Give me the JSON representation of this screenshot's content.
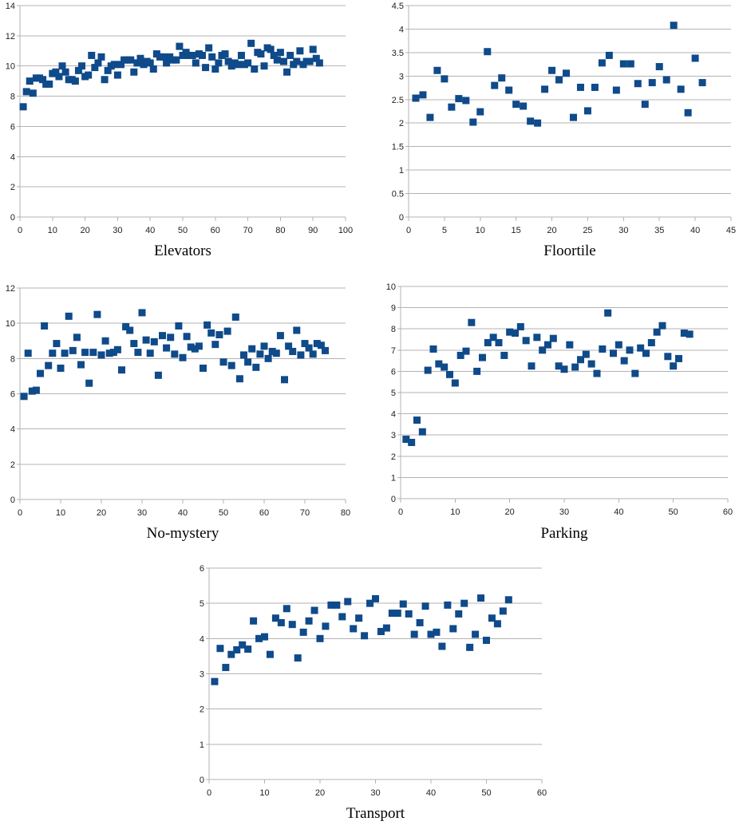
{
  "colors": {
    "marker": "#0f4a8a",
    "grid": "#b3b3b3",
    "axis": "#999999"
  },
  "chart_data": [
    {
      "type": "scatter",
      "title": "Elevators",
      "xlim": [
        0,
        100
      ],
      "ylim": [
        0,
        14
      ],
      "xticks": [
        0,
        10,
        20,
        30,
        40,
        50,
        60,
        70,
        80,
        90,
        100
      ],
      "yticks": [
        0,
        2,
        4,
        6,
        8,
        10,
        12,
        14
      ],
      "grid": true,
      "points": [
        [
          1,
          7.3
        ],
        [
          2,
          8.3
        ],
        [
          3,
          9.0
        ],
        [
          4,
          8.2
        ],
        [
          5,
          9.2
        ],
        [
          6,
          9.2
        ],
        [
          7,
          9.1
        ],
        [
          8,
          8.8
        ],
        [
          9,
          8.8
        ],
        [
          10,
          9.5
        ],
        [
          11,
          9.6
        ],
        [
          12,
          9.3
        ],
        [
          13,
          10.0
        ],
        [
          14,
          9.6
        ],
        [
          15,
          9.1
        ],
        [
          16,
          9.1
        ],
        [
          17,
          9.0
        ],
        [
          18,
          9.7
        ],
        [
          19,
          10.0
        ],
        [
          20,
          9.3
        ],
        [
          21,
          9.4
        ],
        [
          22,
          10.7
        ],
        [
          23,
          9.9
        ],
        [
          24,
          10.2
        ],
        [
          25,
          10.6
        ],
        [
          26,
          9.1
        ],
        [
          27,
          9.7
        ],
        [
          28,
          10.0
        ],
        [
          29,
          10.1
        ],
        [
          30,
          9.4
        ],
        [
          31,
          10.1
        ],
        [
          32,
          10.4
        ],
        [
          33,
          10.4
        ],
        [
          34,
          10.4
        ],
        [
          35,
          9.6
        ],
        [
          36,
          10.2
        ],
        [
          37,
          10.5
        ],
        [
          38,
          10.1
        ],
        [
          39,
          10.3
        ],
        [
          40,
          10.2
        ],
        [
          41,
          9.8
        ],
        [
          42,
          10.8
        ],
        [
          43,
          10.6
        ],
        [
          44,
          10.6
        ],
        [
          45,
          10.2
        ],
        [
          46,
          10.6
        ],
        [
          47,
          10.4
        ],
        [
          48,
          10.4
        ],
        [
          49,
          11.3
        ],
        [
          50,
          10.7
        ],
        [
          51,
          10.9
        ],
        [
          52,
          10.7
        ],
        [
          53,
          10.7
        ],
        [
          54,
          10.2
        ],
        [
          55,
          10.8
        ],
        [
          56,
          10.7
        ],
        [
          57,
          9.9
        ],
        [
          58,
          11.2
        ],
        [
          59,
          10.6
        ],
        [
          60,
          9.8
        ],
        [
          61,
          10.2
        ],
        [
          62,
          10.7
        ],
        [
          63,
          10.8
        ],
        [
          64,
          10.3
        ],
        [
          65,
          10.0
        ],
        [
          66,
          10.2
        ],
        [
          67,
          10.1
        ],
        [
          68,
          10.7
        ],
        [
          69,
          10.1
        ],
        [
          70,
          10.2
        ],
        [
          71,
          11.5
        ],
        [
          72,
          9.8
        ],
        [
          73,
          10.9
        ],
        [
          74,
          10.8
        ],
        [
          75,
          10.0
        ],
        [
          76,
          11.2
        ],
        [
          77,
          11.1
        ],
        [
          78,
          10.7
        ],
        [
          79,
          10.4
        ],
        [
          80,
          10.9
        ],
        [
          81,
          10.3
        ],
        [
          82,
          9.6
        ],
        [
          83,
          10.7
        ],
        [
          84,
          10.1
        ],
        [
          85,
          10.3
        ],
        [
          86,
          11.0
        ],
        [
          87,
          10.1
        ],
        [
          88,
          10.3
        ],
        [
          89,
          10.3
        ],
        [
          90,
          11.1
        ],
        [
          91,
          10.5
        ],
        [
          92,
          10.2
        ]
      ]
    },
    {
      "type": "scatter",
      "title": "Floortile",
      "xlim": [
        0,
        45
      ],
      "ylim": [
        0,
        4.5
      ],
      "xticks": [
        0,
        5,
        10,
        15,
        20,
        25,
        30,
        35,
        40,
        45
      ],
      "yticks": [
        0,
        0.5,
        1,
        1.5,
        2,
        2.5,
        3,
        3.5,
        4,
        4.5
      ],
      "grid": true,
      "points": [
        [
          1,
          2.53
        ],
        [
          2,
          2.6
        ],
        [
          3,
          2.12
        ],
        [
          4,
          3.12
        ],
        [
          5,
          2.94
        ],
        [
          6,
          2.34
        ],
        [
          7,
          2.52
        ],
        [
          8,
          2.48
        ],
        [
          9,
          2.02
        ],
        [
          10,
          2.24
        ],
        [
          11,
          3.52
        ],
        [
          12,
          2.8
        ],
        [
          13,
          2.96
        ],
        [
          14,
          2.7
        ],
        [
          15,
          2.4
        ],
        [
          16,
          2.36
        ],
        [
          17,
          2.04
        ],
        [
          18,
          2.0
        ],
        [
          19,
          2.72
        ],
        [
          20,
          3.12
        ],
        [
          21,
          2.92
        ],
        [
          22,
          3.06
        ],
        [
          23,
          2.12
        ],
        [
          24,
          2.76
        ],
        [
          25,
          2.26
        ],
        [
          26,
          2.76
        ],
        [
          27,
          3.28
        ],
        [
          28,
          3.44
        ],
        [
          29,
          2.7
        ],
        [
          30,
          3.26
        ],
        [
          31,
          3.26
        ],
        [
          32,
          2.84
        ],
        [
          33,
          2.4
        ],
        [
          34,
          2.86
        ],
        [
          35,
          3.2
        ],
        [
          36,
          2.92
        ],
        [
          37,
          4.08
        ],
        [
          38,
          2.72
        ],
        [
          39,
          2.22
        ],
        [
          40,
          3.38
        ],
        [
          41,
          2.86
        ]
      ]
    },
    {
      "type": "scatter",
      "title": "No-mystery",
      "xlim": [
        0,
        80
      ],
      "ylim": [
        0,
        12
      ],
      "xticks": [
        0,
        10,
        20,
        30,
        40,
        50,
        60,
        70,
        80
      ],
      "yticks": [
        0,
        2,
        4,
        6,
        8,
        10,
        12
      ],
      "grid": true,
      "points": [
        [
          1,
          5.85
        ],
        [
          2,
          8.3
        ],
        [
          3,
          6.15
        ],
        [
          4,
          6.2
        ],
        [
          5,
          7.15
        ],
        [
          6,
          9.85
        ],
        [
          7,
          7.6
        ],
        [
          8,
          8.3
        ],
        [
          9,
          8.85
        ],
        [
          10,
          7.45
        ],
        [
          11,
          8.3
        ],
        [
          12,
          10.4
        ],
        [
          13,
          8.45
        ],
        [
          14,
          9.2
        ],
        [
          15,
          7.65
        ],
        [
          16,
          8.35
        ],
        [
          17,
          6.6
        ],
        [
          18,
          8.35
        ],
        [
          19,
          10.5
        ],
        [
          20,
          8.2
        ],
        [
          21,
          9.0
        ],
        [
          22,
          8.3
        ],
        [
          23,
          8.35
        ],
        [
          24,
          8.5
        ],
        [
          25,
          7.35
        ],
        [
          26,
          9.8
        ],
        [
          27,
          9.6
        ],
        [
          28,
          8.85
        ],
        [
          29,
          8.35
        ],
        [
          30,
          10.6
        ],
        [
          31,
          9.05
        ],
        [
          32,
          8.3
        ],
        [
          33,
          8.95
        ],
        [
          34,
          7.05
        ],
        [
          35,
          9.3
        ],
        [
          36,
          8.6
        ],
        [
          37,
          9.2
        ],
        [
          38,
          8.25
        ],
        [
          39,
          9.85
        ],
        [
          40,
          8.05
        ],
        [
          41,
          9.25
        ],
        [
          42,
          8.65
        ],
        [
          43,
          8.55
        ],
        [
          44,
          8.7
        ],
        [
          45,
          7.45
        ],
        [
          46,
          9.9
        ],
        [
          47,
          9.45
        ],
        [
          48,
          8.8
        ],
        [
          49,
          9.35
        ],
        [
          50,
          7.8
        ],
        [
          51,
          9.55
        ],
        [
          52,
          7.6
        ],
        [
          53,
          10.35
        ],
        [
          54,
          6.85
        ],
        [
          55,
          8.2
        ],
        [
          56,
          7.8
        ],
        [
          57,
          8.55
        ],
        [
          58,
          7.5
        ],
        [
          59,
          8.25
        ],
        [
          60,
          8.7
        ],
        [
          61,
          8.0
        ],
        [
          62,
          8.4
        ],
        [
          63,
          8.3
        ],
        [
          64,
          9.3
        ],
        [
          65,
          6.8
        ],
        [
          66,
          8.7
        ],
        [
          67,
          8.4
        ],
        [
          68,
          9.6
        ],
        [
          69,
          8.2
        ],
        [
          70,
          8.85
        ],
        [
          71,
          8.6
        ],
        [
          72,
          8.25
        ],
        [
          73,
          8.85
        ],
        [
          74,
          8.75
        ],
        [
          75,
          8.45
        ]
      ]
    },
    {
      "type": "scatter",
      "title": "Parking",
      "xlim": [
        0,
        60
      ],
      "ylim": [
        0,
        10
      ],
      "xticks": [
        0,
        10,
        20,
        30,
        40,
        50,
        60
      ],
      "yticks": [
        0,
        1,
        2,
        3,
        4,
        5,
        6,
        7,
        8,
        9,
        10
      ],
      "grid": true,
      "points": [
        [
          1,
          2.8
        ],
        [
          2,
          2.65
        ],
        [
          3,
          3.7
        ],
        [
          4,
          3.15
        ],
        [
          5,
          6.05
        ],
        [
          6,
          7.05
        ],
        [
          7,
          6.35
        ],
        [
          8,
          6.2
        ],
        [
          9,
          5.85
        ],
        [
          10,
          5.45
        ],
        [
          11,
          6.75
        ],
        [
          12,
          6.95
        ],
        [
          13,
          8.3
        ],
        [
          14,
          6.0
        ],
        [
          15,
          6.65
        ],
        [
          16,
          7.35
        ],
        [
          17,
          7.6
        ],
        [
          18,
          7.35
        ],
        [
          19,
          6.75
        ],
        [
          20,
          7.85
        ],
        [
          21,
          7.8
        ],
        [
          22,
          8.1
        ],
        [
          23,
          7.45
        ],
        [
          24,
          6.25
        ],
        [
          25,
          7.6
        ],
        [
          26,
          7.0
        ],
        [
          27,
          7.25
        ],
        [
          28,
          7.55
        ],
        [
          29,
          6.25
        ],
        [
          30,
          6.1
        ],
        [
          31,
          7.25
        ],
        [
          32,
          6.2
        ],
        [
          33,
          6.55
        ],
        [
          34,
          6.8
        ],
        [
          35,
          6.35
        ],
        [
          36,
          5.9
        ],
        [
          37,
          7.05
        ],
        [
          38,
          8.75
        ],
        [
          39,
          6.85
        ],
        [
          40,
          7.25
        ],
        [
          41,
          6.5
        ],
        [
          42,
          7.0
        ],
        [
          43,
          5.9
        ],
        [
          44,
          7.1
        ],
        [
          45,
          6.85
        ],
        [
          46,
          7.35
        ],
        [
          47,
          7.85
        ],
        [
          48,
          8.15
        ],
        [
          49,
          6.7
        ],
        [
          50,
          6.25
        ],
        [
          51,
          6.6
        ],
        [
          52,
          7.8
        ],
        [
          53,
          7.75
        ]
      ]
    },
    {
      "type": "scatter",
      "title": "Transport",
      "xlim": [
        0,
        60
      ],
      "ylim": [
        0,
        6
      ],
      "xticks": [
        0,
        10,
        20,
        30,
        40,
        50,
        60
      ],
      "yticks": [
        0,
        1,
        2,
        3,
        4,
        5,
        6
      ],
      "grid": true,
      "points": [
        [
          1,
          2.78
        ],
        [
          2,
          3.72
        ],
        [
          3,
          3.18
        ],
        [
          4,
          3.55
        ],
        [
          5,
          3.68
        ],
        [
          6,
          3.82
        ],
        [
          7,
          3.7
        ],
        [
          8,
          4.5
        ],
        [
          9,
          4.0
        ],
        [
          10,
          4.05
        ],
        [
          11,
          3.55
        ],
        [
          12,
          4.58
        ],
        [
          13,
          4.45
        ],
        [
          14,
          4.85
        ],
        [
          15,
          4.4
        ],
        [
          16,
          3.45
        ],
        [
          17,
          4.18
        ],
        [
          18,
          4.5
        ],
        [
          19,
          4.8
        ],
        [
          20,
          4.0
        ],
        [
          21,
          4.35
        ],
        [
          22,
          4.95
        ],
        [
          23,
          4.95
        ],
        [
          24,
          4.62
        ],
        [
          25,
          5.05
        ],
        [
          26,
          4.28
        ],
        [
          27,
          4.58
        ],
        [
          28,
          4.08
        ],
        [
          29,
          5.0
        ],
        [
          30,
          5.13
        ],
        [
          31,
          4.2
        ],
        [
          32,
          4.3
        ],
        [
          33,
          4.72
        ],
        [
          34,
          4.72
        ],
        [
          35,
          4.98
        ],
        [
          36,
          4.7
        ],
        [
          37,
          4.12
        ],
        [
          38,
          4.45
        ],
        [
          39,
          4.92
        ],
        [
          40,
          4.12
        ],
        [
          41,
          4.18
        ],
        [
          42,
          3.78
        ],
        [
          43,
          4.95
        ],
        [
          44,
          4.28
        ],
        [
          45,
          4.7
        ],
        [
          46,
          5.0
        ],
        [
          47,
          3.75
        ],
        [
          48,
          4.12
        ],
        [
          49,
          5.15
        ],
        [
          50,
          3.95
        ],
        [
          51,
          4.58
        ],
        [
          52,
          4.42
        ],
        [
          53,
          4.78
        ],
        [
          54,
          5.1
        ]
      ]
    }
  ]
}
